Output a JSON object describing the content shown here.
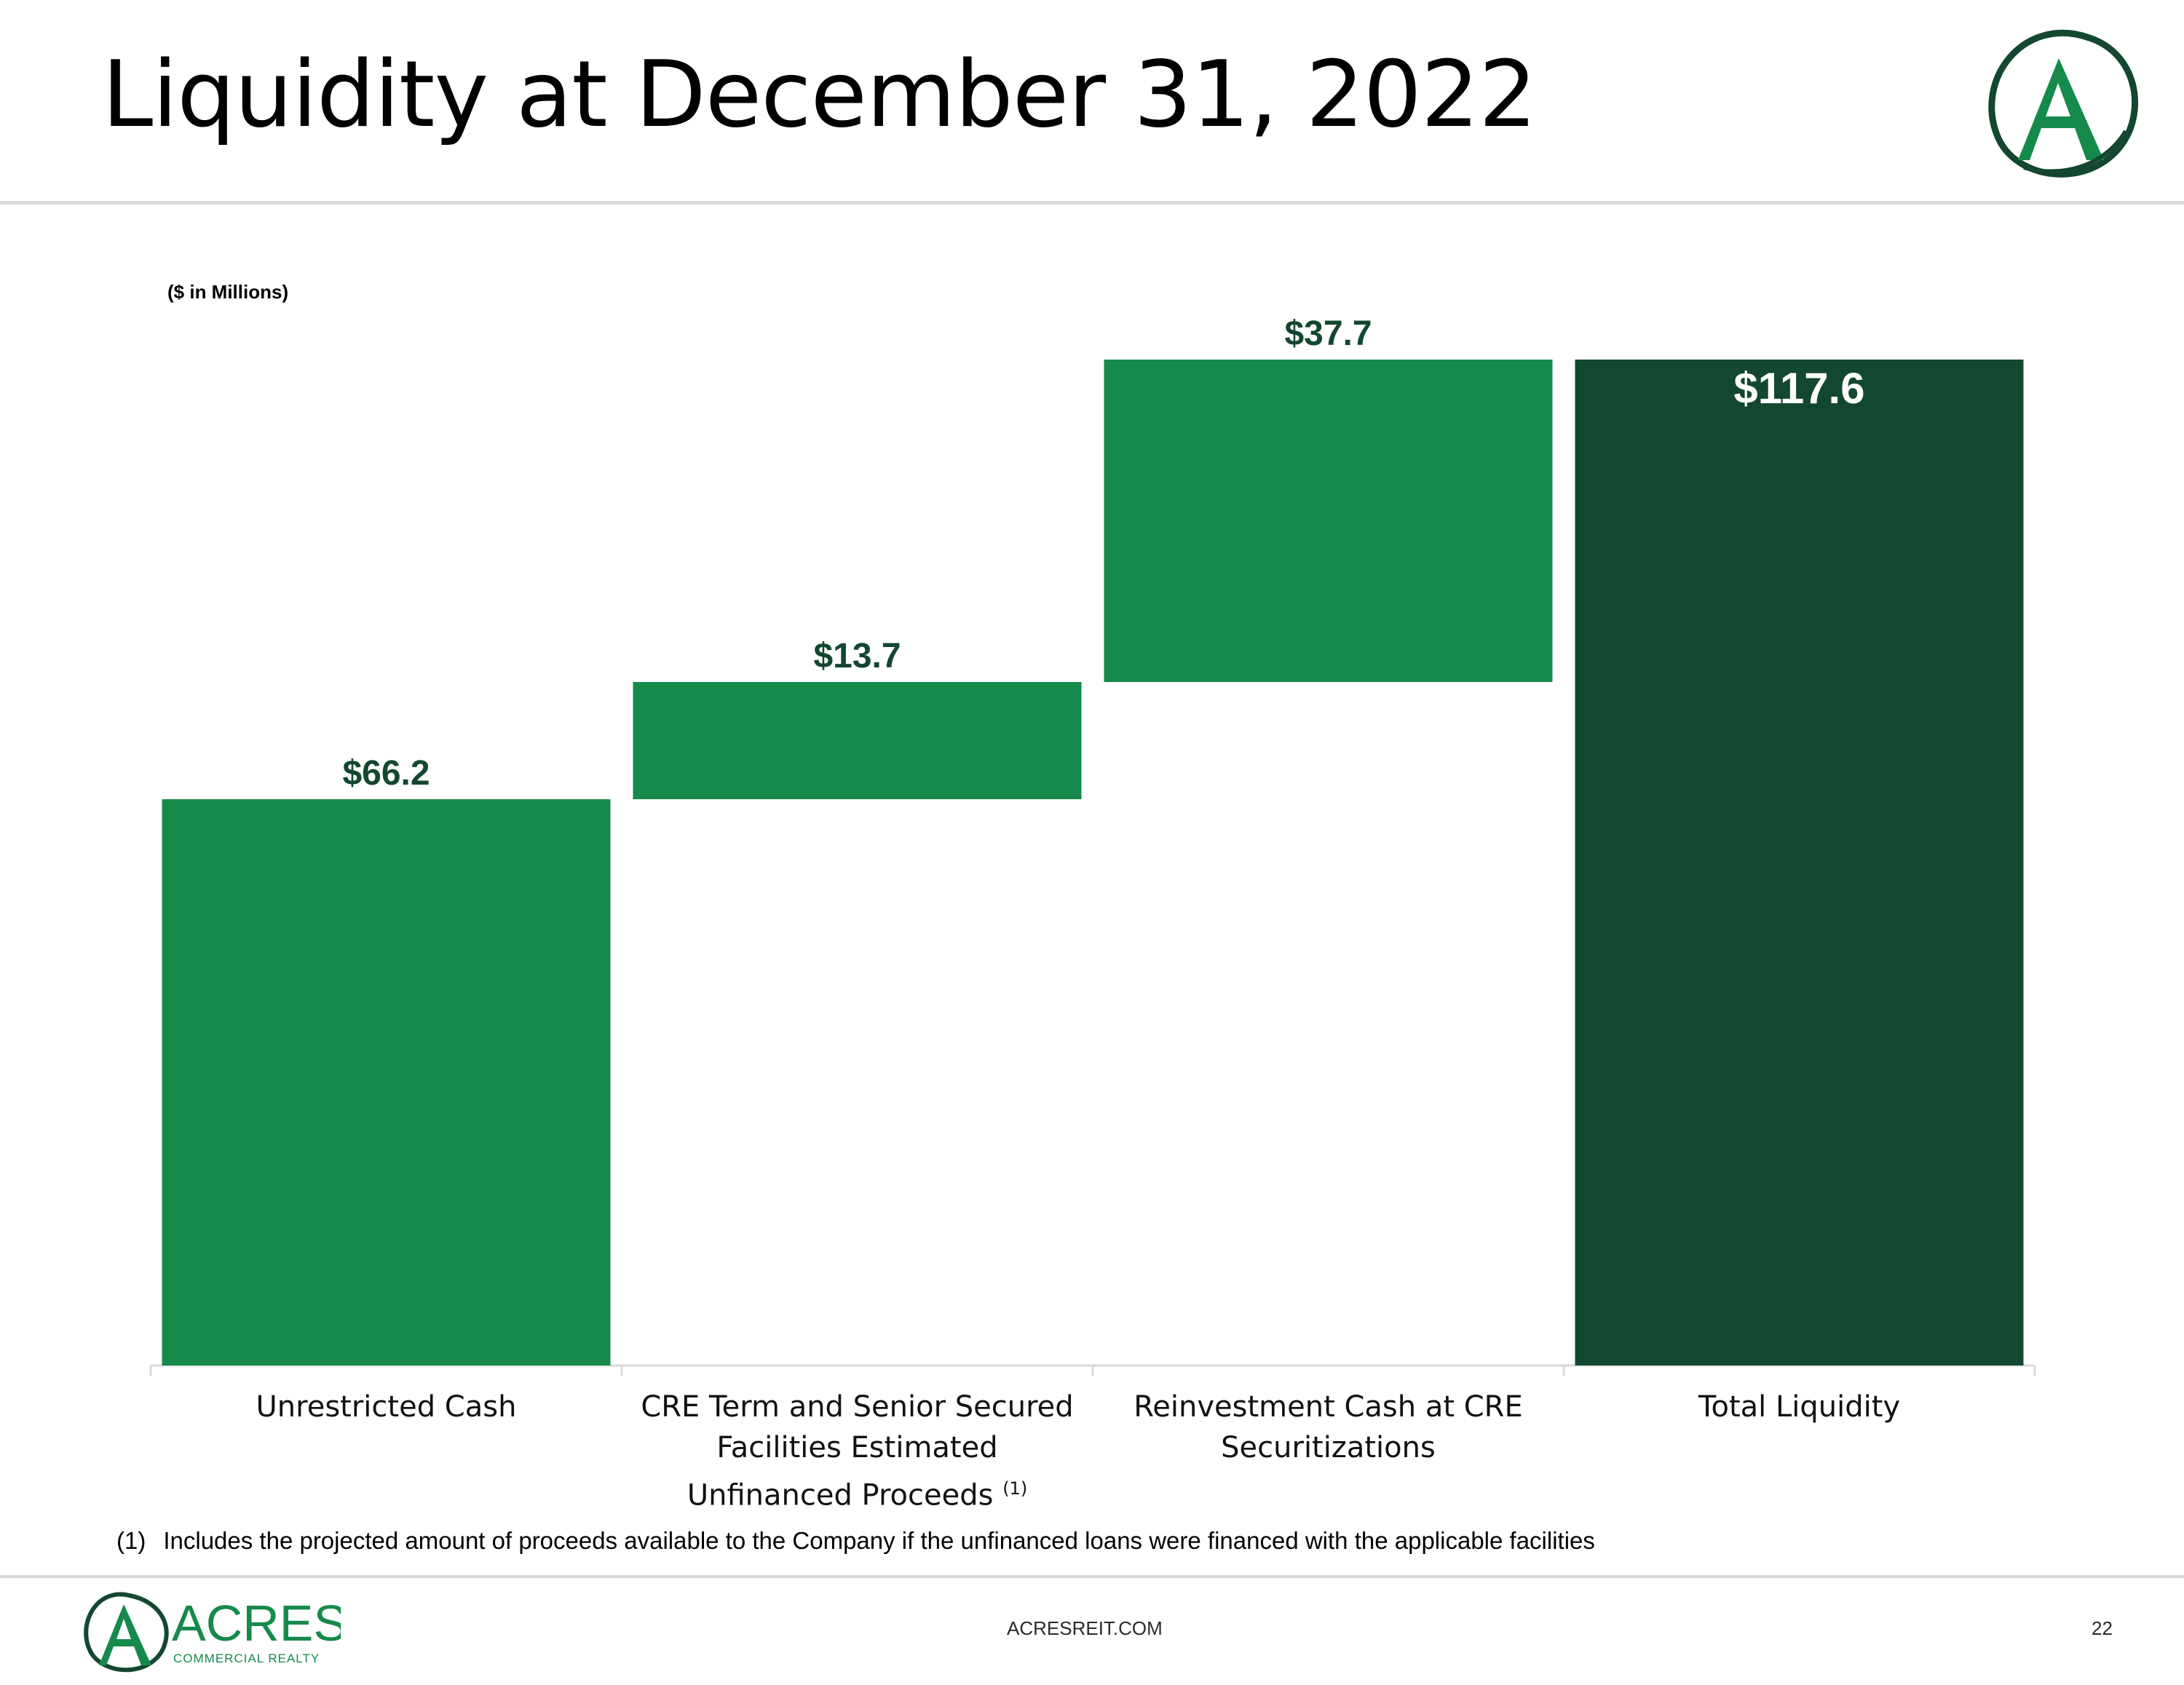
{
  "title": "Liquidity at December 31, 2022",
  "units_note": "($ in Millions)",
  "footnote": {
    "marker": "(1)",
    "text": "Includes the projected amount of proceeds available to the Company if the unfinanced loans were financed with the applicable facilities"
  },
  "footer": {
    "website": "ACRESREIT.COM",
    "page_number": "22"
  },
  "logo": {
    "letter": "A",
    "wordmark": "ACRES",
    "tagline": "COMMERCIAL REALTY"
  },
  "colors": {
    "green": "#158a4a",
    "dark_green": "#134730",
    "label_green": "#134730",
    "axis": "#d9d9d9"
  },
  "chart_data": {
    "type": "waterfall",
    "title": "",
    "ylabel": "($ in Millions)",
    "ylim": [
      0,
      117.6
    ],
    "categories": [
      "Unrestricted Cash",
      "CRE Term and Senior Secured Facilities Estimated Unfinanced Proceeds",
      "Reinvestment Cash at CRE Securitizations",
      "Total Liquidity"
    ],
    "category_superscripts": [
      "",
      "(1)",
      "",
      ""
    ],
    "values": [
      66.2,
      13.7,
      37.7,
      117.6
    ],
    "kinds": [
      "increase",
      "increase",
      "increase",
      "total"
    ],
    "data_labels": [
      "$66.2",
      "$13.7",
      "$37.7",
      "$117.6"
    ]
  }
}
